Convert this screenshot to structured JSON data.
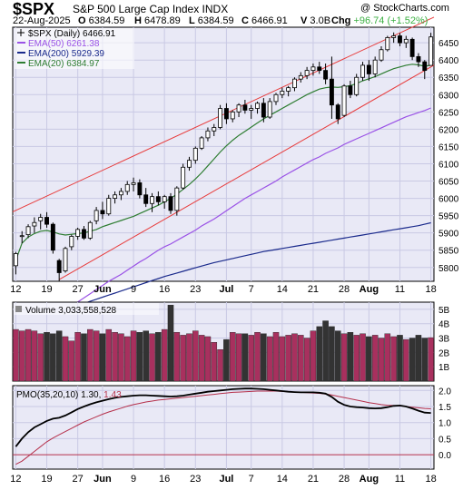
{
  "header": {
    "symbol": "$SPX",
    "name": "S&P 500 Large Cap Index  INDX",
    "copyright": "@ StockCharts.com",
    "date": "22-Aug-2025",
    "open_label": "O",
    "open": "6384.59",
    "high_label": "H",
    "high": "6478.89",
    "low_label": "L",
    "low": "6384.59",
    "close_label": "C",
    "close": "6466.91",
    "volume_label": "V",
    "volume": "3.0B",
    "change_label": "Chg",
    "change": "+96.74 (+1.52%)"
  },
  "colors": {
    "panel_bg": "#e9e9f6",
    "grid": "#c9c9e4",
    "up_candle": "#ffffff",
    "down_candle": "#000000",
    "ema50": "#9a52e6",
    "ema200": "#1a2a8c",
    "ema20": "#2e7d32",
    "channel": "#e83a3a",
    "volume_up": "#a8305e",
    "volume_down": "#333333",
    "pmo": "#000000",
    "pmo_signal": "#b5304b",
    "change_positive": "#3cb043"
  },
  "chart_data": [
    {
      "type": "candlestick",
      "title": "$SPX (Daily) 6466.91",
      "legend": [
        {
          "label": "$SPX (Daily) 6466.91",
          "color": "#000000"
        },
        {
          "label": "EMA(50) 6261.38",
          "color": "#9a52e6"
        },
        {
          "label": "EMA(200) 5929.39",
          "color": "#1a2a8c"
        },
        {
          "label": "EMA(20) 6384.97",
          "color": "#2e7d32"
        }
      ],
      "legend_position": "top-left",
      "x_tick_labels": [
        "12",
        "19",
        "27",
        "Jun",
        "9",
        "16",
        "23",
        "Jul",
        "7",
        "14",
        "21",
        "28",
        "Aug",
        "11",
        "18"
      ],
      "y_ticks": [
        5800,
        5850,
        5900,
        5950,
        6000,
        6050,
        6100,
        6150,
        6200,
        6250,
        6300,
        6350,
        6400,
        6450
      ],
      "ylim": [
        5760,
        6495
      ],
      "ohlc": [
        {
          "o": 5805,
          "h": 5845,
          "l": 5780,
          "c": 5840
        },
        {
          "o": 5890,
          "h": 5905,
          "l": 5870,
          "c": 5892
        },
        {
          "o": 5895,
          "h": 5925,
          "l": 5885,
          "c": 5918
        },
        {
          "o": 5920,
          "h": 5945,
          "l": 5900,
          "c": 5930
        },
        {
          "o": 5935,
          "h": 5955,
          "l": 5910,
          "c": 5945
        },
        {
          "o": 5945,
          "h": 5960,
          "l": 5915,
          "c": 5925
        },
        {
          "o": 5925,
          "h": 5930,
          "l": 5840,
          "c": 5850
        },
        {
          "o": 5820,
          "h": 5825,
          "l": 5760,
          "c": 5785
        },
        {
          "o": 5790,
          "h": 5860,
          "l": 5785,
          "c": 5855
        },
        {
          "o": 5860,
          "h": 5895,
          "l": 5850,
          "c": 5890
        },
        {
          "o": 5890,
          "h": 5915,
          "l": 5880,
          "c": 5910
        },
        {
          "o": 5910,
          "h": 5920,
          "l": 5880,
          "c": 5885
        },
        {
          "o": 5885,
          "h": 5935,
          "l": 5880,
          "c": 5930
        },
        {
          "o": 5935,
          "h": 5975,
          "l": 5925,
          "c": 5965
        },
        {
          "o": 5965,
          "h": 5990,
          "l": 5940,
          "c": 5955
        },
        {
          "o": 5955,
          "h": 6010,
          "l": 5950,
          "c": 6000
        },
        {
          "o": 6000,
          "h": 6020,
          "l": 5985,
          "c": 6010
        },
        {
          "o": 6010,
          "h": 6030,
          "l": 5995,
          "c": 6020
        },
        {
          "o": 6020,
          "h": 6050,
          "l": 6010,
          "c": 6040
        },
        {
          "o": 6040,
          "h": 6060,
          "l": 6020,
          "c": 6045
        },
        {
          "o": 6045,
          "h": 6055,
          "l": 6000,
          "c": 6010
        },
        {
          "o": 6010,
          "h": 6030,
          "l": 5975,
          "c": 5985
        },
        {
          "o": 5985,
          "h": 6015,
          "l": 5960,
          "c": 6005
        },
        {
          "o": 6005,
          "h": 6020,
          "l": 5980,
          "c": 5990
        },
        {
          "o": 5990,
          "h": 6010,
          "l": 5970,
          "c": 6005
        },
        {
          "o": 6005,
          "h": 6015,
          "l": 5955,
          "c": 5965
        },
        {
          "o": 5965,
          "h": 6035,
          "l": 5950,
          "c": 6030
        },
        {
          "o": 6030,
          "h": 6100,
          "l": 6025,
          "c": 6090
        },
        {
          "o": 6090,
          "h": 6120,
          "l": 6080,
          "c": 6110
        },
        {
          "o": 6110,
          "h": 6150,
          "l": 6100,
          "c": 6145
        },
        {
          "o": 6145,
          "h": 6180,
          "l": 6140,
          "c": 6175
        },
        {
          "o": 6175,
          "h": 6205,
          "l": 6165,
          "c": 6195
        },
        {
          "o": 6195,
          "h": 6215,
          "l": 6180,
          "c": 6205
        },
        {
          "o": 6205,
          "h": 6270,
          "l": 6200,
          "c": 6260
        },
        {
          "o": 6260,
          "h": 6275,
          "l": 6215,
          "c": 6230
        },
        {
          "o": 6230,
          "h": 6255,
          "l": 6220,
          "c": 6250
        },
        {
          "o": 6250,
          "h": 6275,
          "l": 6235,
          "c": 6270
        },
        {
          "o": 6270,
          "h": 6285,
          "l": 6245,
          "c": 6255
        },
        {
          "o": 6255,
          "h": 6270,
          "l": 6230,
          "c": 6260
        },
        {
          "o": 6260,
          "h": 6280,
          "l": 6245,
          "c": 6275
        },
        {
          "o": 6275,
          "h": 6290,
          "l": 6220,
          "c": 6235
        },
        {
          "o": 6235,
          "h": 6290,
          "l": 6230,
          "c": 6280
        },
        {
          "o": 6280,
          "h": 6305,
          "l": 6270,
          "c": 6300
        },
        {
          "o": 6300,
          "h": 6320,
          "l": 6290,
          "c": 6310
        },
        {
          "o": 6310,
          "h": 6325,
          "l": 6295,
          "c": 6320
        },
        {
          "o": 6320,
          "h": 6350,
          "l": 6310,
          "c": 6345
        },
        {
          "o": 6345,
          "h": 6365,
          "l": 6335,
          "c": 6355
        },
        {
          "o": 6355,
          "h": 6380,
          "l": 6345,
          "c": 6370
        },
        {
          "o": 6370,
          "h": 6390,
          "l": 6355,
          "c": 6380
        },
        {
          "o": 6380,
          "h": 6395,
          "l": 6360,
          "c": 6370
        },
        {
          "o": 6370,
          "h": 6390,
          "l": 6330,
          "c": 6345
        },
        {
          "o": 6345,
          "h": 6410,
          "l": 6230,
          "c": 6270
        },
        {
          "o": 6270,
          "h": 6275,
          "l": 6215,
          "c": 6230
        },
        {
          "o": 6240,
          "h": 6330,
          "l": 6235,
          "c": 6325
        },
        {
          "o": 6325,
          "h": 6340,
          "l": 6290,
          "c": 6300
        },
        {
          "o": 6300,
          "h": 6360,
          "l": 6295,
          "c": 6350
        },
        {
          "o": 6350,
          "h": 6395,
          "l": 6340,
          "c": 6385
        },
        {
          "o": 6385,
          "h": 6400,
          "l": 6340,
          "c": 6360
        },
        {
          "o": 6360,
          "h": 6410,
          "l": 6350,
          "c": 6400
        },
        {
          "o": 6400,
          "h": 6440,
          "l": 6395,
          "c": 6430
        },
        {
          "o": 6430,
          "h": 6470,
          "l": 6425,
          "c": 6465
        },
        {
          "o": 6465,
          "h": 6480,
          "l": 6450,
          "c": 6470
        },
        {
          "o": 6470,
          "h": 6478,
          "l": 6440,
          "c": 6450
        },
        {
          "o": 6450,
          "h": 6470,
          "l": 6435,
          "c": 6460
        },
        {
          "o": 6460,
          "h": 6465,
          "l": 6400,
          "c": 6410
        },
        {
          "o": 6410,
          "h": 6420,
          "l": 6380,
          "c": 6395
        },
        {
          "o": 6395,
          "h": 6400,
          "l": 6345,
          "c": 6370
        },
        {
          "o": 6384.59,
          "h": 6478.89,
          "l": 6384.59,
          "c": 6466.91
        }
      ],
      "ema20": [
        5820,
        5870,
        5888,
        5898,
        5905,
        5907,
        5903,
        5897,
        5894,
        5896,
        5898,
        5900,
        5905,
        5910,
        5918,
        5924,
        5930,
        5936,
        5942,
        5948,
        5956,
        5964,
        5972,
        5980,
        5990,
        6000,
        6012,
        6026,
        6040,
        6056,
        6074,
        6094,
        6114,
        6134,
        6152,
        6168,
        6182,
        6194,
        6206,
        6218,
        6230,
        6240,
        6250,
        6260,
        6270,
        6280,
        6290,
        6300,
        6308,
        6316,
        6320,
        6322,
        6321,
        6323,
        6326,
        6332,
        6340,
        6346,
        6352,
        6360,
        6368,
        6375,
        6380,
        6385,
        6388,
        6386,
        6382,
        6384.97
      ],
      "ema50": [
        5540,
        5565,
        5588,
        5610,
        5630,
        5648,
        5662,
        5672,
        5680,
        5690,
        5700,
        5712,
        5724,
        5736,
        5748,
        5760,
        5770,
        5780,
        5792,
        5804,
        5816,
        5826,
        5838,
        5850,
        5860,
        5868,
        5878,
        5888,
        5898,
        5908,
        5920,
        5930,
        5940,
        5952,
        5964,
        5976,
        5988,
        6000,
        6010,
        6020,
        6030,
        6040,
        6050,
        6062,
        6072,
        6082,
        6092,
        6102,
        6112,
        6120,
        6130,
        6138,
        6146,
        6156,
        6164,
        6172,
        6180,
        6188,
        6196,
        6204,
        6212,
        6220,
        6228,
        6236,
        6242,
        6248,
        6254,
        6261.38
      ],
      "ema200": [
        5630,
        5636,
        5642,
        5648,
        5654,
        5660,
        5666,
        5672,
        5678,
        5684,
        5690,
        5696,
        5702,
        5708,
        5714,
        5720,
        5726,
        5732,
        5738,
        5744,
        5750,
        5756,
        5762,
        5768,
        5774,
        5779,
        5784,
        5789,
        5794,
        5799,
        5804,
        5809,
        5814,
        5818,
        5822,
        5826,
        5830,
        5834,
        5838,
        5842,
        5846,
        5849,
        5852,
        5855,
        5858,
        5861,
        5864,
        5867,
        5870,
        5873,
        5876,
        5879,
        5882,
        5885,
        5888,
        5891,
        5894,
        5897,
        5900,
        5903,
        5906,
        5909,
        5912,
        5915,
        5918,
        5921,
        5925,
        5929.39
      ],
      "channel_upper": [
        {
          "i": 0,
          "v": 5965
        },
        {
          "i": 67,
          "v": 6520
        }
      ],
      "channel_lower": [
        {
          "i": 7,
          "v": 5765
        },
        {
          "i": 67,
          "v": 6380
        }
      ]
    },
    {
      "type": "bar",
      "title": "Volume 3,033,558,528",
      "y_ticks": [
        "1B",
        "2B",
        "3B",
        "4B",
        "5B"
      ],
      "ylim": [
        0,
        5.5
      ],
      "unit": "billions",
      "values": [
        3.6,
        3.5,
        3.6,
        3.5,
        3.3,
        3.4,
        3.3,
        3.5,
        3.1,
        2.8,
        3.4,
        3.3,
        3.6,
        3.5,
        3.3,
        3.6,
        3.4,
        3.3,
        3.1,
        3.5,
        3.4,
        3.5,
        3.3,
        3.4,
        3.6,
        5.3,
        3.4,
        3.2,
        3.3,
        3.5,
        3.2,
        3.1,
        2.7,
        2.2,
        2.9,
        3.4,
        3.3,
        3.3,
        3.2,
        3.4,
        3.3,
        3.1,
        3.4,
        3.1,
        3.2,
        3.3,
        3.2,
        3.0,
        3.5,
        3.8,
        4.2,
        3.8,
        3.5,
        3.3,
        3.4,
        3.2,
        3.3,
        3.1,
        3.2,
        3.0,
        3.3,
        3.1,
        3.2,
        2.9,
        3.0,
        3.2,
        3.0,
        3.03
      ]
    },
    {
      "type": "line",
      "title": "PMO(35,20,10) 1.30, 1.43",
      "y_ticks": [
        "2.0",
        "1.5",
        "1.0",
        "0.5",
        "0.0"
      ],
      "ylim": [
        -0.45,
        2.15
      ],
      "series": [
        {
          "name": "PMO(35,20,10)",
          "last": "1.30",
          "values": [
            0.25,
            0.5,
            0.7,
            0.85,
            0.95,
            1.05,
            1.12,
            1.15,
            1.22,
            1.32,
            1.42,
            1.5,
            1.57,
            1.63,
            1.68,
            1.73,
            1.77,
            1.8,
            1.82,
            1.84,
            1.85,
            1.85,
            1.84,
            1.83,
            1.82,
            1.81,
            1.82,
            1.84,
            1.87,
            1.9,
            1.93,
            1.96,
            1.98,
            2.0,
            2.02,
            2.04,
            2.05,
            2.06,
            2.06,
            2.05,
            2.04,
            2.02,
            2.0,
            1.98,
            1.96,
            1.95,
            1.94,
            1.94,
            1.94,
            1.93,
            1.9,
            1.8,
            1.65,
            1.55,
            1.5,
            1.48,
            1.47,
            1.45,
            1.44,
            1.45,
            1.48,
            1.52,
            1.53,
            1.5,
            1.44,
            1.37,
            1.31,
            1.3
          ]
        },
        {
          "name": "signal",
          "last": "1.43",
          "values": [
            -0.3,
            -0.2,
            -0.05,
            0.1,
            0.25,
            0.4,
            0.52,
            0.62,
            0.72,
            0.82,
            0.92,
            1.02,
            1.1,
            1.18,
            1.26,
            1.33,
            1.39,
            1.45,
            1.51,
            1.56,
            1.6,
            1.64,
            1.67,
            1.7,
            1.72,
            1.74,
            1.76,
            1.78,
            1.8,
            1.82,
            1.84,
            1.86,
            1.88,
            1.9,
            1.92,
            1.94,
            1.95,
            1.96,
            1.97,
            1.98,
            1.98,
            1.98,
            1.98,
            1.97,
            1.96,
            1.95,
            1.94,
            1.93,
            1.92,
            1.91,
            1.89,
            1.86,
            1.82,
            1.78,
            1.74,
            1.7,
            1.66,
            1.62,
            1.59,
            1.56,
            1.54,
            1.53,
            1.52,
            1.5,
            1.48,
            1.46,
            1.44,
            1.43
          ]
        }
      ],
      "x_tick_labels": [
        "12",
        "19",
        "27",
        "Jun",
        "9",
        "16",
        "23",
        "Jul",
        "7",
        "14",
        "21",
        "28",
        "Aug",
        "11",
        "18"
      ]
    }
  ]
}
